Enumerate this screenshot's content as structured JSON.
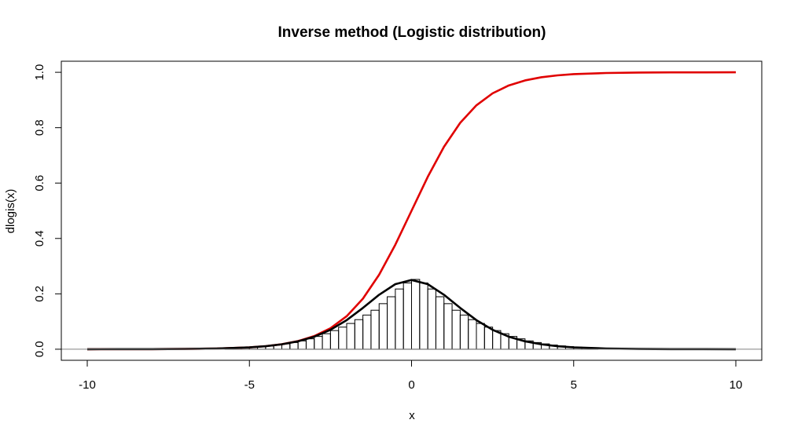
{
  "chart_data": {
    "type": "line",
    "title": "Inverse method (Logistic distribution)",
    "xlabel": "x",
    "ylabel": "dlogis(x)",
    "xlim": [
      -10.8,
      10.8
    ],
    "ylim": [
      -0.04,
      1.04
    ],
    "x_ticks": [
      "-10",
      "-5",
      "0",
      "5",
      "10"
    ],
    "y_ticks": [
      "0.0",
      "0.2",
      "0.4",
      "0.6",
      "0.8",
      "1.0"
    ],
    "grid": false,
    "series": [
      {
        "color": "#e00000",
        "x": [
          -10,
          -9,
          -8,
          -7,
          -6,
          -5,
          -4.5,
          -4,
          -3.5,
          -3,
          -2.5,
          -2,
          -1.5,
          -1,
          -0.5,
          0,
          0.5,
          1,
          1.5,
          2,
          2.5,
          3,
          3.5,
          4,
          4.5,
          5,
          6,
          7,
          8,
          9,
          10
        ],
        "y": [
          0.0,
          0.0001,
          0.0003,
          0.0009,
          0.0025,
          0.0067,
          0.011,
          0.018,
          0.0293,
          0.0474,
          0.0759,
          0.1192,
          0.1824,
          0.2689,
          0.3775,
          0.5,
          0.6225,
          0.7311,
          0.8176,
          0.8808,
          0.9241,
          0.9526,
          0.9707,
          0.982,
          0.989,
          0.9933,
          0.9975,
          0.9991,
          0.9997,
          0.9999,
          1.0
        ]
      },
      {
        "color": "#000000",
        "x": [
          -10,
          -9,
          -8,
          -7,
          -6,
          -5,
          -4.5,
          -4,
          -3.5,
          -3,
          -2.5,
          -2,
          -1.5,
          -1,
          -0.5,
          0,
          0.5,
          1,
          1.5,
          2,
          2.5,
          3,
          3.5,
          4,
          4.5,
          5,
          6,
          7,
          8,
          9,
          10
        ],
        "y": [
          0.0,
          0.0001,
          0.0003,
          0.0009,
          0.0025,
          0.0066,
          0.0109,
          0.0177,
          0.0285,
          0.0452,
          0.0701,
          0.105,
          0.1491,
          0.1966,
          0.235,
          0.25,
          0.235,
          0.1966,
          0.1491,
          0.105,
          0.0701,
          0.0452,
          0.0285,
          0.0177,
          0.0109,
          0.0066,
          0.0025,
          0.0009,
          0.0003,
          0.0001,
          0.0
        ]
      }
    ],
    "histogram": {
      "bin_width": 0.25,
      "bins_start": [
        -5.75,
        -5.5,
        -5.25,
        -5.0,
        -4.75,
        -4.5,
        -4.25,
        -4.0,
        -3.75,
        -3.5,
        -3.25,
        -3.0,
        -2.75,
        -2.5,
        -2.25,
        -2.0,
        -1.75,
        -1.5,
        -1.25,
        -1.0,
        -0.75,
        -0.5,
        -0.25,
        0.0,
        0.25,
        0.5,
        0.75,
        1.0,
        1.25,
        1.5,
        1.75,
        2.0,
        2.25,
        2.5,
        2.75,
        3.0,
        3.25,
        3.5,
        3.75,
        4.0,
        4.25,
        4.5,
        4.75,
        5.0,
        5.25,
        5.5
      ],
      "densities": [
        0.0036,
        0.0046,
        0.0058,
        0.0074,
        0.0094,
        0.0119,
        0.0151,
        0.0192,
        0.0241,
        0.0301,
        0.0375,
        0.0461,
        0.056,
        0.0673,
        0.0798,
        0.093,
        0.1068,
        0.1234,
        0.1408,
        0.1645,
        0.1895,
        0.2175,
        0.2394,
        0.252,
        0.2394,
        0.2175,
        0.1895,
        0.1645,
        0.1408,
        0.1234,
        0.1068,
        0.093,
        0.0798,
        0.0673,
        0.056,
        0.0461,
        0.0375,
        0.0301,
        0.0241,
        0.0192,
        0.0151,
        0.0119,
        0.0094,
        0.0074,
        0.0058,
        0.0046
      ]
    }
  }
}
